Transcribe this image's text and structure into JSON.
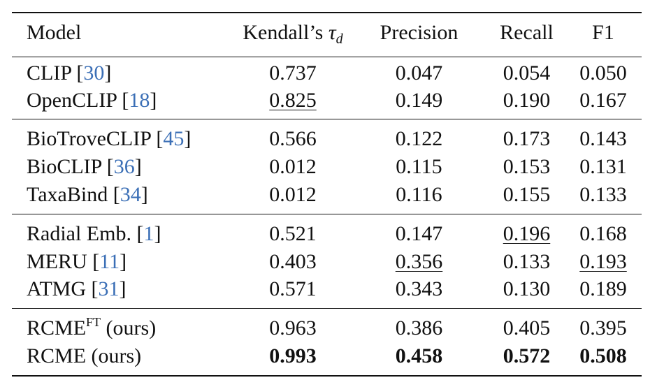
{
  "header": {
    "model": "Model",
    "kendall_prefix": "Kendall’s ",
    "kendall_symbol": "τ",
    "kendall_sub": "d",
    "precision": "Precision",
    "recall": "Recall",
    "f1": "F1"
  },
  "groups": [
    {
      "rows": [
        {
          "name": "CLIP ",
          "cite": "30",
          "kendall": "0.737",
          "precision": "0.047",
          "recall": "0.054",
          "f1": "0.050"
        },
        {
          "name": "OpenCLIP ",
          "cite": "18",
          "kendall": "0.825",
          "precision": "0.149",
          "recall": "0.190",
          "f1": "0.167"
        }
      ]
    },
    {
      "rows": [
        {
          "name": "BioTroveCLIP ",
          "cite": "45",
          "kendall": "0.566",
          "precision": "0.122",
          "recall": "0.173",
          "f1": "0.143"
        },
        {
          "name": "BioCLIP ",
          "cite": "36",
          "kendall": "0.012",
          "precision": "0.115",
          "recall": "0.153",
          "f1": "0.131"
        },
        {
          "name": "TaxaBind ",
          "cite": "34",
          "kendall": "0.012",
          "precision": "0.116",
          "recall": "0.155",
          "f1": "0.133"
        }
      ]
    },
    {
      "rows": [
        {
          "name": "Radial Emb. ",
          "cite": "1",
          "kendall": "0.521",
          "precision": "0.147",
          "recall": "0.196",
          "f1": "0.168"
        },
        {
          "name": "MERU ",
          "cite": "11",
          "kendall": "0.403",
          "precision": "0.356",
          "recall": "0.133",
          "f1": "0.193"
        },
        {
          "name": "ATMG ",
          "cite": "31",
          "kendall": "0.571",
          "precision": "0.343",
          "recall": "0.130",
          "f1": "0.189"
        }
      ]
    },
    {
      "rows": [
        {
          "name": "RCME",
          "sup": "FT",
          "suffix": " (ours)",
          "kendall": "0.963",
          "precision": "0.386",
          "recall": "0.405",
          "f1": "0.395"
        },
        {
          "name": "RCME (ours)",
          "kendall": "0.993",
          "precision": "0.458",
          "recall": "0.572",
          "f1": "0.508"
        }
      ]
    }
  ]
}
